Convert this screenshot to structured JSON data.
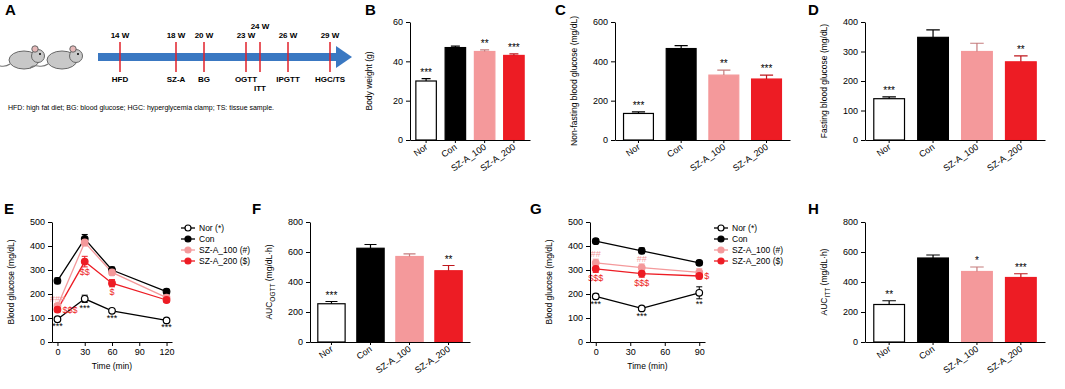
{
  "diagram": {
    "title": "A",
    "events": [
      {
        "week": 14,
        "label": "14 W",
        "event": "HFD"
      },
      {
        "week": 18,
        "label": "18 W",
        "event": "SZ-A"
      },
      {
        "week": 20,
        "label": "20 W",
        "event": "BG"
      },
      {
        "week": 23,
        "label": "23 W",
        "event": "OGTT"
      },
      {
        "week": 24,
        "label": "24 W",
        "event": "ITT"
      },
      {
        "week": 26,
        "label": "26 W",
        "event": "IPGTT"
      },
      {
        "week": 29,
        "label": "29 W",
        "event": "HGC/TS"
      }
    ],
    "footnote": "HFD: high fat diet; BG: blood glucose; HGC: hyperglycemia clamp; TS: tissue sample."
  },
  "chart_data": [
    {
      "type": "bar",
      "title": "B",
      "y_label": "Body weight (g)",
      "categories": [
        "Nor",
        "Con",
        "SZ-A_100",
        "SZ-A_200"
      ],
      "values": [
        30,
        47,
        45,
        43
      ],
      "errors": [
        1.2,
        0.7,
        0.8,
        0.8
      ],
      "annotations": [
        "***",
        null,
        "**",
        "***"
      ],
      "colors": [
        "#ffffff",
        "#000000",
        "#f4999b",
        "#ed1c24"
      ],
      "ylim": [
        0,
        60
      ],
      "yticks": [
        0,
        20,
        40,
        60
      ]
    },
    {
      "type": "bar",
      "title": "C",
      "y_label": "Non-fasting blood glucose (mg/dL)",
      "categories": [
        "Nor",
        "Con",
        "SZ-A_100",
        "SZ-A_200"
      ],
      "values": [
        135,
        465,
        330,
        310
      ],
      "errors": [
        8,
        15,
        25,
        20
      ],
      "annotations": [
        "***",
        null,
        "**",
        "***"
      ],
      "colors": [
        "#ffffff",
        "#000000",
        "#f4999b",
        "#ed1c24"
      ],
      "ylim": [
        0,
        600
      ],
      "yticks": [
        0,
        200,
        400,
        600
      ]
    },
    {
      "type": "bar",
      "title": "D",
      "y_label": "Fasting blood glucose (mg/dL)",
      "categories": [
        "Nor",
        "Con",
        "SZ-A_100",
        "SZ-A_200"
      ],
      "values": [
        140,
        348,
        300,
        265
      ],
      "errors": [
        6,
        25,
        28,
        20
      ],
      "annotations": [
        "***",
        null,
        null,
        "**"
      ],
      "colors": [
        "#ffffff",
        "#000000",
        "#f4999b",
        "#ed1c24"
      ],
      "ylim": [
        0,
        400
      ],
      "yticks": [
        0,
        100,
        200,
        300,
        400
      ]
    },
    {
      "type": "line",
      "title": "E",
      "x_label": "Time (min)",
      "y_label": "Blood glucose (mg/dL)",
      "x": [
        0,
        30,
        60,
        120
      ],
      "xlim": [
        -6,
        126
      ],
      "xticks": [
        0,
        30,
        60,
        90,
        120
      ],
      "ylim": [
        0,
        500
      ],
      "yticks": [
        0,
        100,
        200,
        300,
        400,
        500
      ],
      "legend": "right",
      "series": [
        {
          "name": "Nor (*)",
          "color": "#000000",
          "marker": "open-circle",
          "values": [
            95,
            180,
            130,
            90
          ],
          "errors": [
            5,
            15,
            6,
            4
          ],
          "annotations": [
            "***",
            "***",
            "***",
            "***"
          ]
        },
        {
          "name": "Con",
          "color": "#000000",
          "marker": "circle",
          "values": [
            255,
            430,
            300,
            210
          ],
          "errors": [
            12,
            18,
            12,
            10
          ]
        },
        {
          "name": "SZ-A_100 (#)",
          "color": "#f4999b",
          "marker": "circle",
          "values": [
            150,
            415,
            290,
            185
          ],
          "errors": [
            10,
            15,
            12,
            8
          ],
          "annotations": [
            "###",
            null,
            null,
            null
          ]
        },
        {
          "name": "SZ-A_200 ($)",
          "color": "#ed1c24",
          "marker": "circle",
          "values": [
            135,
            335,
            245,
            175
          ],
          "errors": [
            10,
            22,
            15,
            10
          ],
          "annotations": [
            "$$$",
            "$$",
            "$",
            null
          ]
        }
      ]
    },
    {
      "type": "bar",
      "title": "F",
      "y_label": "AUC",
      "y_label_sub": "OGTT",
      "y_label_unit": " (mg/dL·h)",
      "categories": [
        "Nor",
        "Con",
        "SZ-A_100",
        "SZ-A_200"
      ],
      "values": [
        255,
        625,
        570,
        475
      ],
      "errors": [
        15,
        25,
        18,
        35
      ],
      "annotations": [
        "***",
        null,
        null,
        "**"
      ],
      "colors": [
        "#ffffff",
        "#000000",
        "#f4999b",
        "#ed1c24"
      ],
      "ylim": [
        0,
        800
      ],
      "yticks": [
        0,
        200,
        400,
        600,
        800
      ]
    },
    {
      "type": "line",
      "title": "G",
      "x_label": "Time (min)",
      "y_label": "Blood glucose (mg/dL)",
      "x": [
        0,
        40,
        90
      ],
      "xlim": [
        -5,
        95
      ],
      "xticks": [
        0,
        30,
        60,
        90
      ],
      "ylim": [
        0,
        500
      ],
      "yticks": [
        0,
        100,
        200,
        300,
        400,
        500
      ],
      "legend": "right",
      "series": [
        {
          "name": "Nor (*)",
          "color": "#000000",
          "marker": "open-circle",
          "values": [
            190,
            140,
            205
          ],
          "errors": [
            10,
            8,
            25
          ],
          "annotations": [
            "***",
            "***",
            "**"
          ]
        },
        {
          "name": "Con",
          "color": "#000000",
          "marker": "circle",
          "values": [
            420,
            380,
            330
          ],
          "errors": [
            10,
            12,
            10
          ]
        },
        {
          "name": "SZ-A_100 (#)",
          "color": "#f4999b",
          "marker": "circle",
          "values": [
            330,
            310,
            290
          ],
          "errors": [
            15,
            15,
            15
          ],
          "annotations": [
            "##",
            "##",
            null
          ]
        },
        {
          "name": "SZ-A_200 ($)",
          "color": "#ed1c24",
          "marker": "circle",
          "values": [
            305,
            285,
            275
          ],
          "errors": [
            15,
            15,
            12
          ],
          "annotations": [
            "$$$",
            "$$$",
            "$"
          ]
        }
      ]
    },
    {
      "type": "bar",
      "title": "H",
      "y_label": "AUC",
      "y_label_sub": "ITT",
      "y_label_unit": " (mg/dL·h)",
      "categories": [
        "Nor",
        "Con",
        "SZ-A_100",
        "SZ-A_200"
      ],
      "values": [
        250,
        560,
        470,
        430
      ],
      "errors": [
        25,
        20,
        30,
        25
      ],
      "annotations": [
        "**",
        null,
        "*",
        "***"
      ],
      "colors": [
        "#ffffff",
        "#000000",
        "#f4999b",
        "#ed1c24"
      ],
      "ylim": [
        0,
        800
      ],
      "yticks": [
        0,
        200,
        400,
        600,
        800
      ]
    }
  ]
}
